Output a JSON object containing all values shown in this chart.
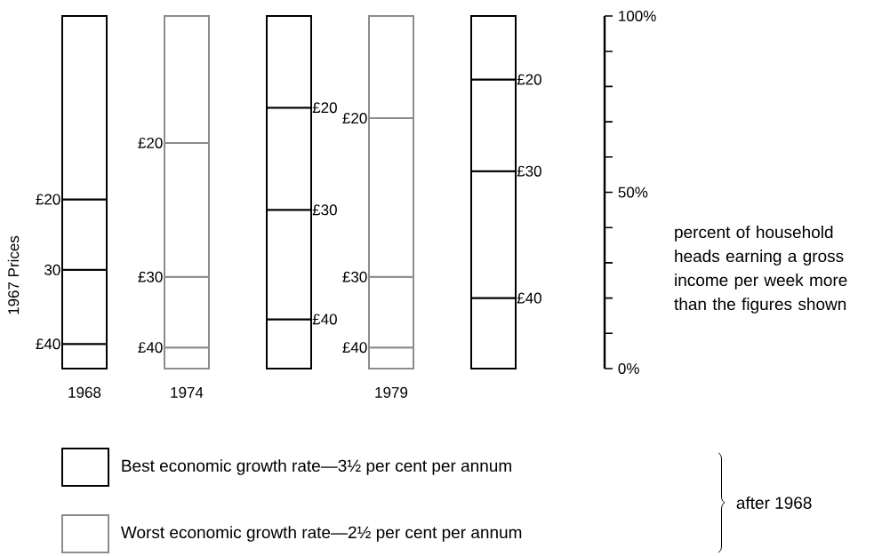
{
  "chart_data": {
    "type": "bar",
    "stacked": true,
    "categories": [
      "1968",
      "1974",
      null,
      "1979",
      null
    ],
    "series": [
      {
        "name": "£40",
        "colors": [
          "#000000",
          "#8c8c8c",
          "#000000",
          "#8c8c8c",
          "#000000"
        ],
        "values": [
          7,
          6,
          14,
          6,
          20
        ]
      },
      {
        "name": "£30",
        "colors": [
          "#000000",
          "#8c8c8c",
          "#000000",
          "#8c8c8c",
          "#000000"
        ],
        "values": [
          21,
          20,
          31,
          20,
          36
        ]
      },
      {
        "name": "£20",
        "colors": [
          "#000000",
          "#8c8c8c",
          "#000000",
          "#8c8c8c",
          "#000000"
        ],
        "values": [
          20,
          38,
          29,
          45,
          26
        ]
      },
      {
        "colors": [
          "#000000",
          "#8c8c8c",
          "#000000",
          "#8c8c8c",
          "#000000"
        ],
        "values": [
          52,
          36,
          26,
          29,
          18
        ]
      }
    ],
    "ylim": [
      0,
      100
    ],
    "yticks": [
      {
        "value": 0,
        "label": "0%"
      },
      {
        "value": 50,
        "label": "50%"
      },
      {
        "value": 100,
        "label": "100%"
      }
    ],
    "ylabel": "percent of household heads earning a gross income per week more than the figures shown",
    "annotations": [
      "1967 Prices",
      {
        "text": "30",
        "x": "1968",
        "y": 28
      },
      "Best economic growth rate—3½ per cent per annum",
      "Worst economic growth rate—2½ per cent per annum",
      "after 1968"
    ]
  }
}
